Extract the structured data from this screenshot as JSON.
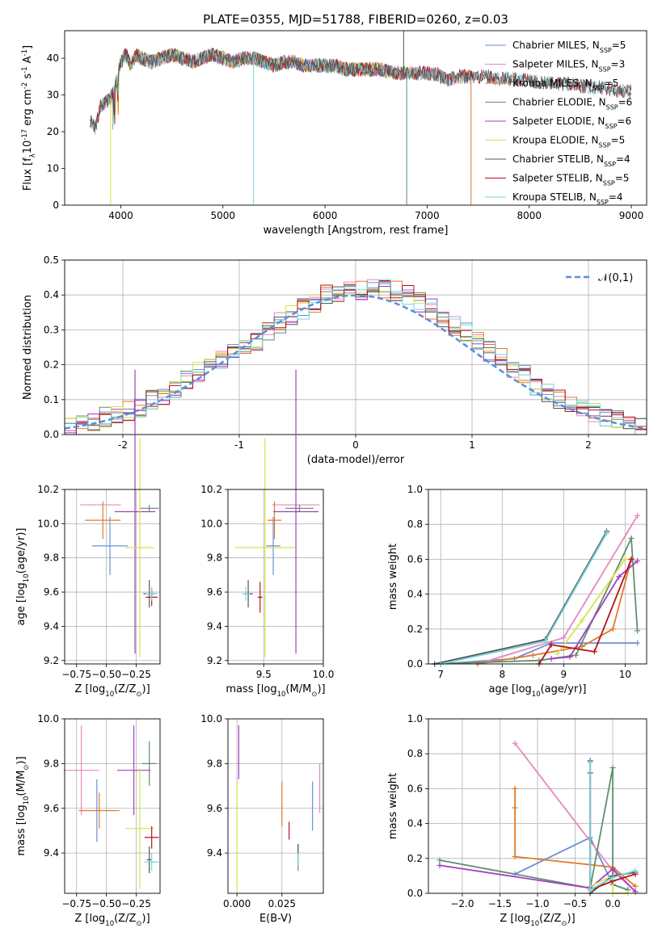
{
  "figure": {
    "title": "PLATE=0355, MJD=51788, FIBERID=0260, z=0.03"
  },
  "models": [
    {
      "label": "Chabrier MILES, N$_{SSP}$=5",
      "legend_prefix": "Chabrier MILES, N",
      "legend_sub": "SSP",
      "legend_suffix": "=5",
      "color": "#6a8fd6"
    },
    {
      "label": "Salpeter MILES, N$_{SSP}$=3",
      "legend_prefix": "Salpeter MILES, N",
      "legend_sub": "SSP",
      "legend_suffix": "=3",
      "color": "#e987bf"
    },
    {
      "label": "Kroupa MILES, N$_{SSP}$=5",
      "legend_prefix": "Kroupa MILES, N",
      "legend_sub": "SSP",
      "legend_suffix": "=5",
      "color": "#e07b2a"
    },
    {
      "label": "Chabrier ELODIE, N$_{SSP}$=6",
      "legend_prefix": "Chabrier ELODIE, N",
      "legend_sub": "SSP",
      "legend_suffix": "=6",
      "color": "#5e8f6e"
    },
    {
      "label": "Salpeter ELODIE, N$_{SSP}$=6",
      "legend_prefix": "Salpeter ELODIE, N",
      "legend_sub": "SSP",
      "legend_suffix": "=6",
      "color": "#a23fc0"
    },
    {
      "label": "Kroupa ELODIE, N$_{SSP}$=5",
      "legend_prefix": "Kroupa ELODIE, N",
      "legend_sub": "SSP",
      "legend_suffix": "=5",
      "color": "#d8e24a"
    },
    {
      "label": "Chabrier STELIB, N$_{SSP}$=4",
      "legend_prefix": "Chabrier STELIB, N",
      "legend_sub": "SSP",
      "legend_suffix": "=4",
      "color": "#545454"
    },
    {
      "label": "Salpeter STELIB, N$_{SSP}$=5",
      "legend_prefix": "Salpeter STELIB, N",
      "legend_sub": "SSP",
      "legend_suffix": "=5",
      "color": "#b5121b"
    },
    {
      "label": "Kroupa STELIB, N$_{SSP}$=4",
      "legend_prefix": "Kroupa STELIB, N",
      "legend_sub": "SSP",
      "legend_suffix": "=4",
      "color": "#74d6dc"
    }
  ],
  "chart_data": [
    {
      "id": "spectrum",
      "type": "line",
      "xlabel": "wavelength [Angstrom, rest frame]",
      "ylabel": "Flux [f$_\\lambda$10$^{-17}$ erg cm$^{-2}$ s$^{-1}$ A$^{-1}$]",
      "xlim": [
        3450,
        9150
      ],
      "ylim": [
        0,
        47.5
      ],
      "xticks": [
        4000,
        5000,
        6000,
        7000,
        8000,
        9000
      ],
      "yticks": [
        0,
        10,
        20,
        30,
        40
      ],
      "legend_loc": "upper right",
      "x": [
        3700,
        3750,
        3800,
        3850,
        3900,
        3950,
        4000,
        4050,
        4100,
        4150,
        4200,
        4300,
        4400,
        4500,
        4600,
        4700,
        4800,
        4900,
        5000,
        5100,
        5200,
        5300,
        5400,
        5500,
        5600,
        5700,
        5800,
        5900,
        6000,
        6100,
        6200,
        6300,
        6400,
        6500,
        6600,
        6700,
        6800,
        6900,
        7000,
        7100,
        7200,
        7300,
        7400,
        7500,
        7600,
        7700,
        7800,
        7900,
        8000,
        8100,
        8200,
        8300,
        8400,
        8500,
        8600,
        8700,
        8800,
        8900,
        9000
      ],
      "y": [
        23,
        21,
        27,
        28,
        29,
        33,
        39,
        41,
        38,
        41,
        40,
        39,
        40,
        41,
        40,
        39,
        40,
        41,
        40,
        39,
        40,
        40,
        39,
        38,
        39,
        39,
        38,
        38,
        38,
        38,
        37,
        37,
        37,
        37,
        36.5,
        36,
        36,
        36,
        36,
        35.5,
        34,
        35,
        35,
        35,
        35,
        34.5,
        34.5,
        34,
        34,
        33.5,
        33.5,
        33,
        33,
        32.5,
        32,
        32,
        31.5,
        31,
        31
      ],
      "series": [
        {
          "name": "Chabrier MILES, N$_{SSP}$=5",
          "range": [
            3700,
            7400
          ]
        },
        {
          "name": "Salpeter MILES, N$_{SSP}$=3",
          "range": [
            3700,
            7400
          ]
        },
        {
          "name": "Kroupa MILES, N$_{SSP}$=5",
          "range": [
            3700,
            7400
          ]
        },
        {
          "name": "Chabrier ELODIE, N$_{SSP}$=6",
          "range": [
            3900,
            6800
          ]
        },
        {
          "name": "Salpeter ELODIE, N$_{SSP}$=6",
          "range": [
            3900,
            6800
          ]
        },
        {
          "name": "Kroupa ELODIE, N$_{SSP}$=5",
          "range": [
            3900,
            6800
          ]
        },
        {
          "name": "Chabrier STELIB, N$_{SSP}$=4",
          "range": [
            3700,
            9000
          ]
        },
        {
          "name": "Salpeter STELIB, N$_{SSP}$=5",
          "range": [
            3700,
            9000
          ]
        },
        {
          "name": "Kroupa STELIB, N$_{SSP}$=4",
          "range": [
            3700,
            9000
          ]
        }
      ]
    },
    {
      "id": "residuals",
      "type": "histogram",
      "xlabel": "(data-model)/error",
      "ylabel": "Normed distribution",
      "xlim": [
        -2.5,
        2.5
      ],
      "ylim": [
        0,
        0.5
      ],
      "xticks": [
        -2,
        -1,
        0,
        1,
        2
      ],
      "yticks": [
        0.0,
        0.1,
        0.2,
        0.3,
        0.4,
        0.5
      ],
      "bin_edges": [
        -2.5,
        -2.4,
        -2.3,
        -2.2,
        -2.1,
        -2.0,
        -1.9,
        -1.8,
        -1.7,
        -1.6,
        -1.5,
        -1.4,
        -1.3,
        -1.2,
        -1.1,
        -1.0,
        -0.9,
        -0.8,
        -0.7,
        -0.6,
        -0.5,
        -0.4,
        -0.3,
        -0.2,
        -0.1,
        0.0,
        0.1,
        0.2,
        0.3,
        0.4,
        0.5,
        0.6,
        0.7,
        0.8,
        0.9,
        1.0,
        1.1,
        1.2,
        1.3,
        1.4,
        1.5,
        1.6,
        1.7,
        1.8,
        1.9,
        2.0,
        2.1,
        2.2,
        2.3,
        2.4,
        2.5
      ],
      "base": [
        0.02,
        0.03,
        0.04,
        0.05,
        0.06,
        0.07,
        0.08,
        0.1,
        0.11,
        0.13,
        0.16,
        0.18,
        0.2,
        0.22,
        0.23,
        0.25,
        0.27,
        0.3,
        0.32,
        0.34,
        0.36,
        0.38,
        0.4,
        0.41,
        0.42,
        0.41,
        0.43,
        0.42,
        0.41,
        0.4,
        0.38,
        0.36,
        0.33,
        0.31,
        0.29,
        0.27,
        0.24,
        0.22,
        0.19,
        0.17,
        0.14,
        0.12,
        0.1,
        0.08,
        0.07,
        0.06,
        0.05,
        0.04,
        0.03,
        0.02
      ],
      "reference": {
        "name": "$\\mathcal{N}(0,1)$",
        "color": "#5b8ed6",
        "mean": 0,
        "sigma": 1
      }
    },
    {
      "id": "age-vs-Z",
      "type": "errorbar",
      "xlabel": "Z [log$_{10}$(Z/Z$_\\odot$)]",
      "ylabel": "age  [log$_{10}$(age/yr)]",
      "xlim": [
        -0.85,
        -0.05
      ],
      "ylim": [
        9.18,
        10.2
      ],
      "xticks": [
        -0.75,
        -0.5,
        -0.25
      ],
      "xticklabels": [
        "−0.75",
        "−0.50",
        "−0.25"
      ],
      "yticks": [
        9.2,
        9.4,
        9.6,
        9.8,
        10.0,
        10.2
      ],
      "points": [
        {
          "x": -0.47,
          "xerr": 0.15,
          "y": 9.87,
          "yerr": 0.17
        },
        {
          "x": -0.55,
          "xerr": 0.17,
          "y": 10.11,
          "yerr": 0.0
        },
        {
          "x": -0.53,
          "xerr": 0.15,
          "y": 10.02,
          "yerr": 0.11
        },
        {
          "x": -0.14,
          "xerr": 0.08,
          "y": 10.09,
          "yerr": 0.02
        },
        {
          "x": -0.26,
          "xerr": 0.17,
          "y": 10.07,
          "yerr": 0.83
        },
        {
          "x": -0.22,
          "xerr": 0.12,
          "y": 9.86,
          "yerr": 0.64
        },
        {
          "x": -0.14,
          "xerr": 0.05,
          "y": 9.59,
          "yerr": 0.08
        },
        {
          "x": -0.12,
          "xerr": 0.05,
          "y": 9.57,
          "yerr": 0.05
        },
        {
          "x": -0.12,
          "xerr": 0.05,
          "y": 9.59,
          "yerr": 0.04
        }
      ]
    },
    {
      "id": "age-vs-mass",
      "type": "errorbar",
      "xlabel": "mass [log$_{10}$(M/M$_\\odot$)]",
      "ylabel": "",
      "xlim": [
        9.2,
        10.0
      ],
      "ylim": [
        9.18,
        10.2
      ],
      "xticks": [
        9.5,
        10.0
      ],
      "xticklabels": [
        "9.5",
        "10.0"
      ],
      "yticks": [
        9.2,
        9.4,
        9.6,
        9.8,
        10.0,
        10.2
      ],
      "points": [
        {
          "x": 9.58,
          "xerr": 0.06,
          "y": 9.87,
          "yerr": 0.17
        },
        {
          "x": 9.77,
          "xerr": 0.2,
          "y": 10.11,
          "yerr": 0.0
        },
        {
          "x": 9.59,
          "xerr": 0.06,
          "y": 10.02,
          "yerr": 0.11
        },
        {
          "x": 9.8,
          "xerr": 0.12,
          "y": 10.09,
          "yerr": 0.02
        },
        {
          "x": 9.77,
          "xerr": 0.19,
          "y": 10.07,
          "yerr": 0.83
        },
        {
          "x": 9.51,
          "xerr": 0.25,
          "y": 9.86,
          "yerr": 0.64
        },
        {
          "x": 9.37,
          "xerr": 0.04,
          "y": 9.59,
          "yerr": 0.08
        },
        {
          "x": 9.47,
          "xerr": 0.02,
          "y": 9.57,
          "yerr": 0.09
        },
        {
          "x": 9.35,
          "xerr": 0.03,
          "y": 9.59,
          "yerr": 0.04
        }
      ]
    },
    {
      "id": "weight-vs-age",
      "type": "line",
      "xlabel": "age  [log$_{10}$(age/yr)]",
      "ylabel": "mass weight",
      "xlim": [
        6.8,
        10.35
      ],
      "ylim": [
        0,
        1.0
      ],
      "xticks": [
        7,
        8,
        9,
        10
      ],
      "yticks": [
        0.0,
        0.2,
        0.4,
        0.6,
        0.8,
        1.0
      ],
      "series": [
        {
          "name": "Chabrier MILES, N$_{SSP}$=5",
          "x": [
            7.0,
            8.2,
            8.8,
            10.2
          ],
          "y": [
            0.0,
            0.03,
            0.12,
            0.12
          ]
        },
        {
          "name": "Salpeter MILES, N$_{SSP}$=3",
          "x": [
            7.6,
            9.0,
            10.2
          ],
          "y": [
            0.0,
            0.15,
            0.85
          ]
        },
        {
          "name": "Kroupa MILES, N$_{SSP}$=5",
          "x": [
            7.6,
            8.5,
            9.3,
            9.8,
            10.1
          ],
          "y": [
            0.0,
            0.05,
            0.1,
            0.2,
            0.6
          ]
        },
        {
          "name": "Chabrier ELODIE, N$_{SSP}$=6",
          "x": [
            6.9,
            8.6,
            9.2,
            10.1,
            10.2
          ],
          "y": [
            0.0,
            0.02,
            0.05,
            0.72,
            0.19
          ]
        },
        {
          "name": "Salpeter ELODIE, N$_{SSP}$=6",
          "x": [
            8.8,
            9.1,
            9.9,
            10.2
          ],
          "y": [
            0.03,
            0.04,
            0.5,
            0.59
          ]
        },
        {
          "name": "Kroupa ELODIE, N$_{SSP}$=5",
          "x": [
            8.9,
            9.3,
            10.0,
            10.1
          ],
          "y": [
            0.06,
            0.25,
            0.6,
            0.6
          ]
        },
        {
          "name": "Chabrier STELIB, N$_{SSP}$=4",
          "x": [
            6.9,
            8.7,
            9.7
          ],
          "y": [
            0.0,
            0.14,
            0.76
          ]
        },
        {
          "name": "Salpeter STELIB, N$_{SSP}$=5",
          "x": [
            8.6,
            8.8,
            9.5,
            10.1
          ],
          "y": [
            0.0,
            0.11,
            0.07,
            0.6
          ]
        },
        {
          "name": "Kroupa STELIB, N$_{SSP}$=4",
          "x": [
            7.0,
            8.7,
            9.7
          ],
          "y": [
            0.0,
            0.13,
            0.75
          ]
        }
      ]
    },
    {
      "id": "mass-vs-Z",
      "type": "errorbar",
      "xlabel": "Z [log$_{10}$(Z/Z$_\\odot$)]",
      "ylabel": "mass [log$_{10}$(M/M$_\\odot$)]",
      "xlim": [
        -0.85,
        -0.05
      ],
      "ylim": [
        9.22,
        10.0
      ],
      "xticks": [
        -0.75,
        -0.5,
        -0.25
      ],
      "xticklabels": [
        "−0.75",
        "−0.50",
        "−0.25"
      ],
      "yticks": [
        9.4,
        9.6,
        9.8,
        10.0
      ],
      "points": [
        {
          "x": -0.58,
          "xerr": 0.15,
          "y": 9.59,
          "yerr": 0.14
        },
        {
          "x": -0.71,
          "xerr": 0.15,
          "y": 9.77,
          "yerr": 0.2
        },
        {
          "x": -0.56,
          "xerr": 0.17,
          "y": 9.59,
          "yerr": 0.08
        },
        {
          "x": -0.14,
          "xerr": 0.06,
          "y": 9.8,
          "yerr": 0.1
        },
        {
          "x": -0.27,
          "xerr": 0.14,
          "y": 9.77,
          "yerr": 0.2
        },
        {
          "x": -0.22,
          "xerr": 0.12,
          "y": 9.51,
          "yerr": 0.27
        },
        {
          "x": -0.14,
          "xerr": 0.02,
          "y": 9.37,
          "yerr": 0.06
        },
        {
          "x": -0.12,
          "xerr": 0.06,
          "y": 9.47,
          "yerr": 0.05
        },
        {
          "x": -0.12,
          "xerr": 0.06,
          "y": 9.36,
          "yerr": 0.04
        }
      ]
    },
    {
      "id": "mass-vs-EBV",
      "type": "errorbar",
      "xlabel": "E(B-V)",
      "ylabel": "",
      "xlim": [
        -0.005,
        0.048
      ],
      "ylim": [
        9.22,
        10.0
      ],
      "xticks": [
        0.0,
        0.025
      ],
      "xticklabels": [
        "0.000",
        "0.025"
      ],
      "yticks": [
        9.4,
        9.6,
        9.8,
        10.0
      ],
      "points": [
        {
          "x": 0.042,
          "xerr": 0.0,
          "y": 9.61,
          "yerr": 0.11
        },
        {
          "x": 0.046,
          "xerr": 0.0,
          "y": 9.69,
          "yerr": 0.11
        },
        {
          "x": 0.025,
          "xerr": 0.0,
          "y": 9.62,
          "yerr": 0.1
        },
        {
          "x": 0.034,
          "xerr": 0.0,
          "y": 9.38,
          "yerr": 0.06
        },
        {
          "x": 0.001,
          "xerr": 0.0,
          "y": 9.85,
          "yerr": 0.12
        },
        {
          "x": 0.0,
          "xerr": 0.0,
          "y": 9.47,
          "yerr": 0.25
        },
        {
          "x": 0.034,
          "xerr": 0.0,
          "y": 9.39,
          "yerr": 0.05
        },
        {
          "x": 0.029,
          "xerr": 0.0,
          "y": 9.5,
          "yerr": 0.04
        },
        {
          "x": 0.034,
          "xerr": 0.0,
          "y": 9.37,
          "yerr": 0.03
        }
      ]
    },
    {
      "id": "weight-vs-Z",
      "type": "line",
      "xlabel": "Z [log$_{10}$(Z/Z$_\\odot$)]",
      "ylabel": "mass weight",
      "xlim": [
        -2.45,
        0.45
      ],
      "ylim": [
        0,
        1.0
      ],
      "xticks": [
        -2.0,
        -1.5,
        -1.0,
        -0.5,
        0.0
      ],
      "xticklabels": [
        "−2.0",
        "−1.5",
        "−1.0",
        "−0.5",
        "0.0"
      ],
      "yticks": [
        0.0,
        0.2,
        0.4,
        0.6,
        0.8,
        1.0
      ],
      "series": [
        {
          "name": "Chabrier MILES, N$_{SSP}$=5",
          "x": [
            -1.3,
            -0.3,
            0.0,
            0.2
          ],
          "y": [
            0.11,
            0.32,
            0.05,
            0.02
          ]
        },
        {
          "name": "Salpeter MILES, N$_{SSP}$=3",
          "x": [
            -1.3,
            0.0,
            0.3
          ],
          "y": [
            0.86,
            0.13,
            0.01
          ]
        },
        {
          "name": "Kroupa MILES, N$_{SSP}$=5",
          "x": [
            -1.3,
            -1.3,
            -1.3,
            0.0,
            0.3
          ],
          "y": [
            0.6,
            0.49,
            0.21,
            0.15,
            0.04
          ]
        },
        {
          "name": "Chabrier ELODIE, N$_{SSP}$=6",
          "x": [
            -2.3,
            -0.3,
            0.0,
            0.0,
            0.2
          ],
          "y": [
            0.19,
            0.03,
            0.72,
            0.05,
            0.02
          ]
        },
        {
          "name": "Salpeter ELODIE, N$_{SSP}$=6",
          "x": [
            -2.3,
            -0.3,
            0.0,
            0.3
          ],
          "y": [
            0.16,
            0.03,
            0.14,
            0.01
          ]
        },
        {
          "name": "Kroupa ELODIE, N$_{SSP}$=5",
          "x": [
            -0.3,
            0.0,
            0.0,
            0.2
          ],
          "y": [
            0.04,
            0.1,
            0.0,
            0.0
          ]
        },
        {
          "name": "Chabrier STELIB, N$_{SSP}$=4",
          "x": [
            -0.3,
            -0.3,
            0.0,
            0.3
          ],
          "y": [
            0.76,
            0.0,
            0.1,
            0.12
          ]
        },
        {
          "name": "Salpeter STELIB, N$_{SSP}$=5",
          "x": [
            -0.3,
            -0.3,
            0.0,
            0.3
          ],
          "y": [
            0.69,
            0.02,
            0.07,
            0.11
          ]
        },
        {
          "name": "Kroupa STELIB, N$_{SSP}$=4",
          "x": [
            -0.3,
            -0.3,
            0.0,
            0.3
          ],
          "y": [
            0.75,
            0.02,
            0.09,
            0.13
          ]
        }
      ]
    }
  ]
}
